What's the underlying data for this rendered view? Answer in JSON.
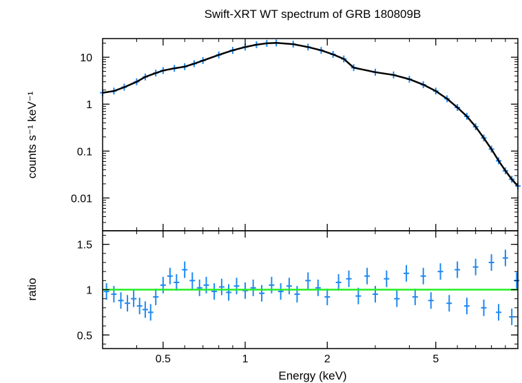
{
  "chart_data": {
    "title": "Swift-XRT WT spectrum of GRB 180809B",
    "xlabel": "Energy (keV)",
    "xscale": "log",
    "xlim": [
      0.3,
      10
    ],
    "x_ticks": [
      0.5,
      1,
      2,
      5
    ],
    "x_tick_labels": [
      "0.5",
      "1",
      "2",
      "5"
    ],
    "colors": {
      "data": "#1e88f0",
      "model": "#000000",
      "ratio_ref": "#22ee22"
    },
    "panels": [
      {
        "name": "spectrum",
        "type": "scatter",
        "ylabel": "counts s⁻¹ keV⁻¹",
        "yscale": "log",
        "ylim": [
          0.002,
          25
        ],
        "y_ticks": [
          0.01,
          0.1,
          1,
          10
        ],
        "y_tick_labels": [
          "0.01",
          "0.1",
          "1",
          "10"
        ],
        "series": [
          {
            "role": "data",
            "x": [
              0.3,
              0.33,
              0.36,
              0.4,
              0.43,
              0.47,
              0.5,
              0.55,
              0.6,
              0.65,
              0.7,
              0.8,
              0.9,
              1.0,
              1.1,
              1.2,
              1.3,
              1.5,
              1.7,
              1.9,
              2.1,
              2.3,
              2.5,
              3.0,
              3.5,
              4.0,
              4.5,
              5.0,
              5.5,
              6.0,
              6.5,
              7.0,
              7.5,
              8.0,
              8.5,
              9.0,
              9.5,
              10.0
            ],
            "y": [
              1.75,
              1.9,
              2.3,
              3.0,
              3.8,
              4.6,
              5.2,
              5.8,
              6.3,
              7.3,
              8.5,
              11.2,
              14.0,
              16.5,
              18.5,
              19.8,
              20.2,
              19.0,
              16.5,
              14.0,
              11.5,
              9.2,
              6.0,
              4.8,
              4.2,
              3.4,
              2.6,
              1.9,
              1.3,
              0.85,
              0.55,
              0.33,
              0.19,
              0.11,
              0.062,
              0.038,
              0.025,
              0.018
            ]
          },
          {
            "role": "model",
            "x": [
              0.3,
              0.33,
              0.36,
              0.4,
              0.43,
              0.47,
              0.5,
              0.55,
              0.6,
              0.65,
              0.7,
              0.8,
              0.9,
              1.0,
              1.1,
              1.2,
              1.3,
              1.5,
              1.7,
              1.9,
              2.1,
              2.3,
              2.5,
              3.0,
              3.5,
              4.0,
              4.5,
              5.0,
              5.5,
              6.0,
              6.5,
              7.0,
              7.5,
              8.0,
              8.5,
              9.0,
              9.5,
              10.0
            ],
            "y": [
              1.75,
              1.9,
              2.3,
              3.0,
              3.8,
              4.6,
              5.2,
              5.8,
              6.3,
              7.3,
              8.5,
              11.2,
              14.0,
              16.5,
              18.5,
              19.8,
              20.2,
              19.0,
              16.5,
              14.0,
              11.5,
              9.2,
              6.0,
              4.8,
              4.2,
              3.4,
              2.6,
              1.9,
              1.3,
              0.85,
              0.55,
              0.33,
              0.19,
              0.11,
              0.062,
              0.038,
              0.025,
              0.018
            ]
          }
        ]
      },
      {
        "name": "ratio",
        "type": "scatter",
        "ylabel": "ratio",
        "yscale": "linear",
        "ylim": [
          0.35,
          1.65
        ],
        "y_ticks": [
          0.5,
          1,
          1.5
        ],
        "y_tick_labels": [
          "0.5",
          "1",
          "1.5"
        ],
        "reference_line": 1,
        "series": [
          {
            "role": "data",
            "x": [
              0.31,
              0.33,
              0.35,
              0.37,
              0.39,
              0.41,
              0.43,
              0.45,
              0.47,
              0.5,
              0.53,
              0.56,
              0.6,
              0.64,
              0.68,
              0.72,
              0.77,
              0.82,
              0.87,
              0.93,
              1.0,
              1.07,
              1.15,
              1.25,
              1.35,
              1.45,
              1.55,
              1.7,
              1.85,
              2.0,
              2.2,
              2.4,
              2.6,
              2.8,
              3.0,
              3.3,
              3.6,
              3.9,
              4.2,
              4.5,
              4.8,
              5.2,
              5.6,
              6.0,
              6.5,
              7.0,
              7.5,
              8.0,
              8.5,
              9.0,
              9.5,
              9.9
            ],
            "y": [
              0.98,
              0.95,
              0.88,
              0.85,
              0.9,
              0.82,
              0.78,
              0.75,
              0.92,
              1.05,
              1.15,
              1.08,
              1.22,
              1.1,
              1.02,
              1.05,
              0.98,
              1.03,
              0.97,
              1.04,
              0.99,
              1.02,
              0.96,
              1.05,
              0.98,
              1.04,
              0.95,
              1.1,
              1.02,
              0.92,
              1.08,
              1.12,
              0.93,
              1.15,
              0.95,
              1.12,
              0.9,
              1.18,
              0.92,
              1.15,
              0.88,
              1.2,
              0.85,
              1.22,
              0.82,
              1.25,
              0.8,
              1.3,
              0.75,
              1.35,
              0.7,
              1.1
            ]
          }
        ]
      }
    ]
  }
}
